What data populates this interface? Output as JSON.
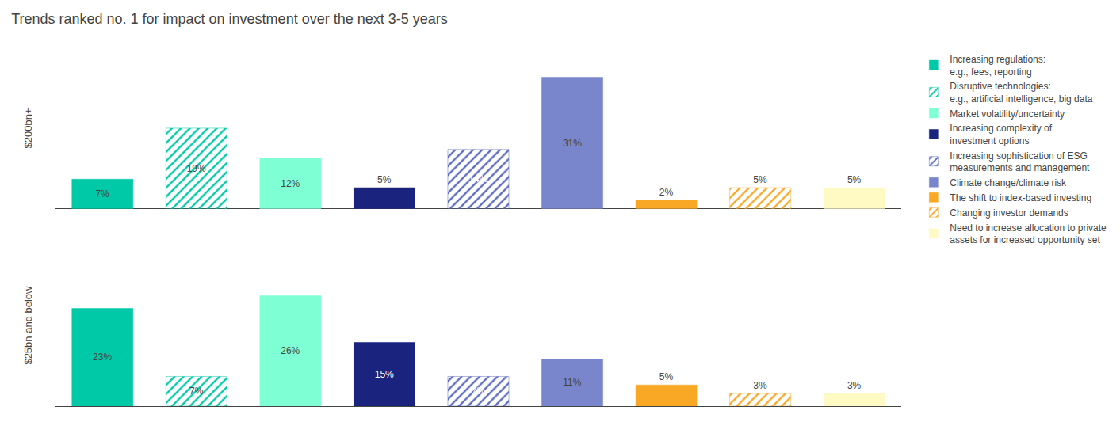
{
  "chart_data": {
    "type": "bar",
    "title": "Trends ranked no. 1 for impact on investment over the next 3-5 years",
    "categories": [
      "$200bn+",
      "$25bn and below"
    ],
    "series": [
      {
        "name": "Increasing regulations:\ne.g., fees, reporting",
        "color": "#00c9a7",
        "values": [
          7,
          23
        ],
        "value_labels": [
          "7%",
          "23%"
        ]
      },
      {
        "name": "Disruptive technologies:\ne.g., artificial intelligence, big data",
        "color": "#00c9a7",
        "marker": "hatched",
        "values": [
          19,
          7
        ],
        "value_labels": [
          "19%",
          "7%"
        ]
      },
      {
        "name": "Market volatility/uncertainty",
        "color": "#7fffd4",
        "values": [
          12,
          26
        ],
        "value_labels": [
          "12%",
          "26%"
        ]
      },
      {
        "name": "Increasing complexity of\ninvestment options",
        "color": "#1a237e",
        "values": [
          5,
          15
        ],
        "value_labels": [
          "5%",
          "15%"
        ]
      },
      {
        "name": "Increasing sophistication of ESG\nmeasurements and management",
        "color": "#5c6bc0",
        "marker": "hatched",
        "values": [
          14,
          7
        ],
        "value_labels": [
          "14%",
          "7%"
        ]
      },
      {
        "name": "Climate change/climate risk",
        "color": "#7986cb",
        "values": [
          31,
          11
        ],
        "value_labels": [
          "31%",
          "11%"
        ]
      },
      {
        "name": "The shift to index-based investing",
        "color": "#f9a825",
        "values": [
          2,
          5
        ],
        "value_labels": [
          "2%",
          "5%"
        ]
      },
      {
        "name": "Changing investor demands",
        "color": "#f9a825",
        "marker": "hatched",
        "values": [
          5,
          3
        ],
        "value_labels": [
          "5%",
          "3%"
        ]
      },
      {
        "name": "Need to increase allocation to private\nassets for increased opportunity set",
        "color": "#fff9c4",
        "values": [
          5,
          3
        ],
        "value_labels": [
          "5%",
          "3%"
        ]
      }
    ],
    "ylim": [
      0,
      38
    ],
    "grid": false,
    "legend": "right",
    "data_labels": true,
    "tick_labels": false
  }
}
